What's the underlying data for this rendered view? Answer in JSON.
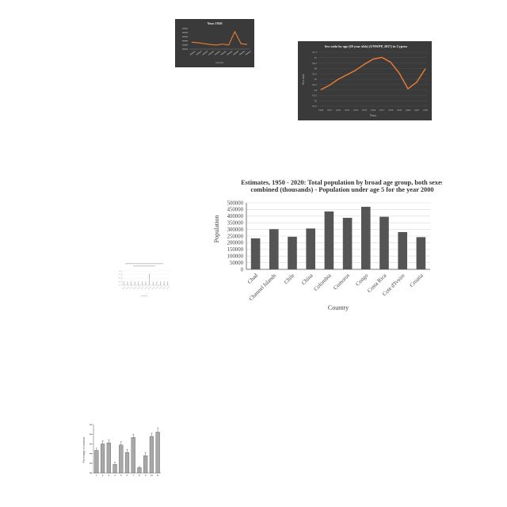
{
  "colors": {
    "dark_bg": "#3a3a3a",
    "orange_line": "#ed7d31",
    "bar_gray": "#555555",
    "light_gray": "#a8a8a8"
  },
  "chart_data": [
    {
      "type": "line",
      "title": "Year 1950",
      "xlabel": "Country",
      "ylabel": "",
      "categories": [
        "",
        "",
        "",
        "",
        "",
        "",
        "",
        "",
        "",
        ""
      ],
      "series": [
        {
          "values": [
            15,
            14,
            12,
            10,
            9,
            11,
            9,
            38,
            12,
            10
          ]
        }
      ],
      "ylim": [
        0,
        45
      ],
      "grid": false
    },
    {
      "type": "line",
      "title": "Sex ratio by age (20 year olds) (UNWPP, 2017) in Cyprus",
      "xlabel": "Years",
      "ylabel": "Sex ratio",
      "categories": [
        "1950",
        "1951",
        "1952",
        "1953",
        "1954",
        "1955",
        "1956",
        "1957",
        "1958",
        "1959",
        "1960",
        "1961",
        "1962"
      ],
      "series": [
        {
          "values": [
            95.9,
            96.05,
            96.25,
            96.4,
            96.55,
            96.75,
            96.92,
            96.98,
            96.82,
            96.45,
            95.93,
            96.15,
            96.6
          ]
        }
      ],
      "yticks": [
        "97.5",
        "97",
        "96.5",
        "96",
        "95.5",
        "95",
        "94.5",
        "94",
        "93.5",
        "93",
        "92.5"
      ],
      "ylim": [
        95.35,
        97.15
      ],
      "grid": true
    },
    {
      "type": "bar",
      "title_lines": [
        "Estimates, 1950 - 2020: Total population by broad age group, both sexes",
        "combined (thousands) - Population under age 5 for the year 2000"
      ],
      "xlabel": "Country",
      "ylabel": "Population",
      "categories": [
        "Chad",
        "Channel Islands",
        "Chile",
        "China",
        "Colombia",
        "Comoros",
        "Congo",
        "Costa Rica",
        "Cote d'Ivoire",
        "Croatia"
      ],
      "values": [
        233000,
        302000,
        245000,
        307000,
        435000,
        387000,
        470000,
        395000,
        280000,
        242000
      ],
      "yticks": [
        "500000",
        "450000",
        "400000",
        "350000",
        "300000",
        "250000",
        "200000",
        "150000",
        "100000",
        "50000",
        "0"
      ],
      "ylim": [
        0,
        500000
      ],
      "grid": true
    },
    {
      "type": "bar",
      "title": "",
      "xlabel": "",
      "ylabel": "",
      "categories": [
        "",
        "",
        "",
        "",
        "",
        "",
        "",
        "",
        "",
        "",
        "",
        "",
        ""
      ],
      "values": [
        4,
        4,
        4,
        4,
        4,
        4,
        4,
        13,
        4,
        4,
        4,
        4,
        4
      ],
      "ylim": [
        0,
        16
      ],
      "grid": true
    },
    {
      "type": "bar",
      "title": "",
      "xlabel": "",
      "ylabel": "Percentage of students",
      "categories": [
        "1",
        "2",
        "3",
        "4",
        "5",
        "6",
        "7",
        "8",
        "9",
        "10",
        "11"
      ],
      "values": [
        21,
        27,
        28,
        8,
        26,
        19,
        33,
        5,
        16,
        34,
        38
      ],
      "errors": [
        2,
        3,
        3,
        2,
        3,
        3,
        3,
        1,
        3,
        3,
        4
      ],
      "ylim": [
        0,
        45
      ],
      "grid": false
    }
  ]
}
